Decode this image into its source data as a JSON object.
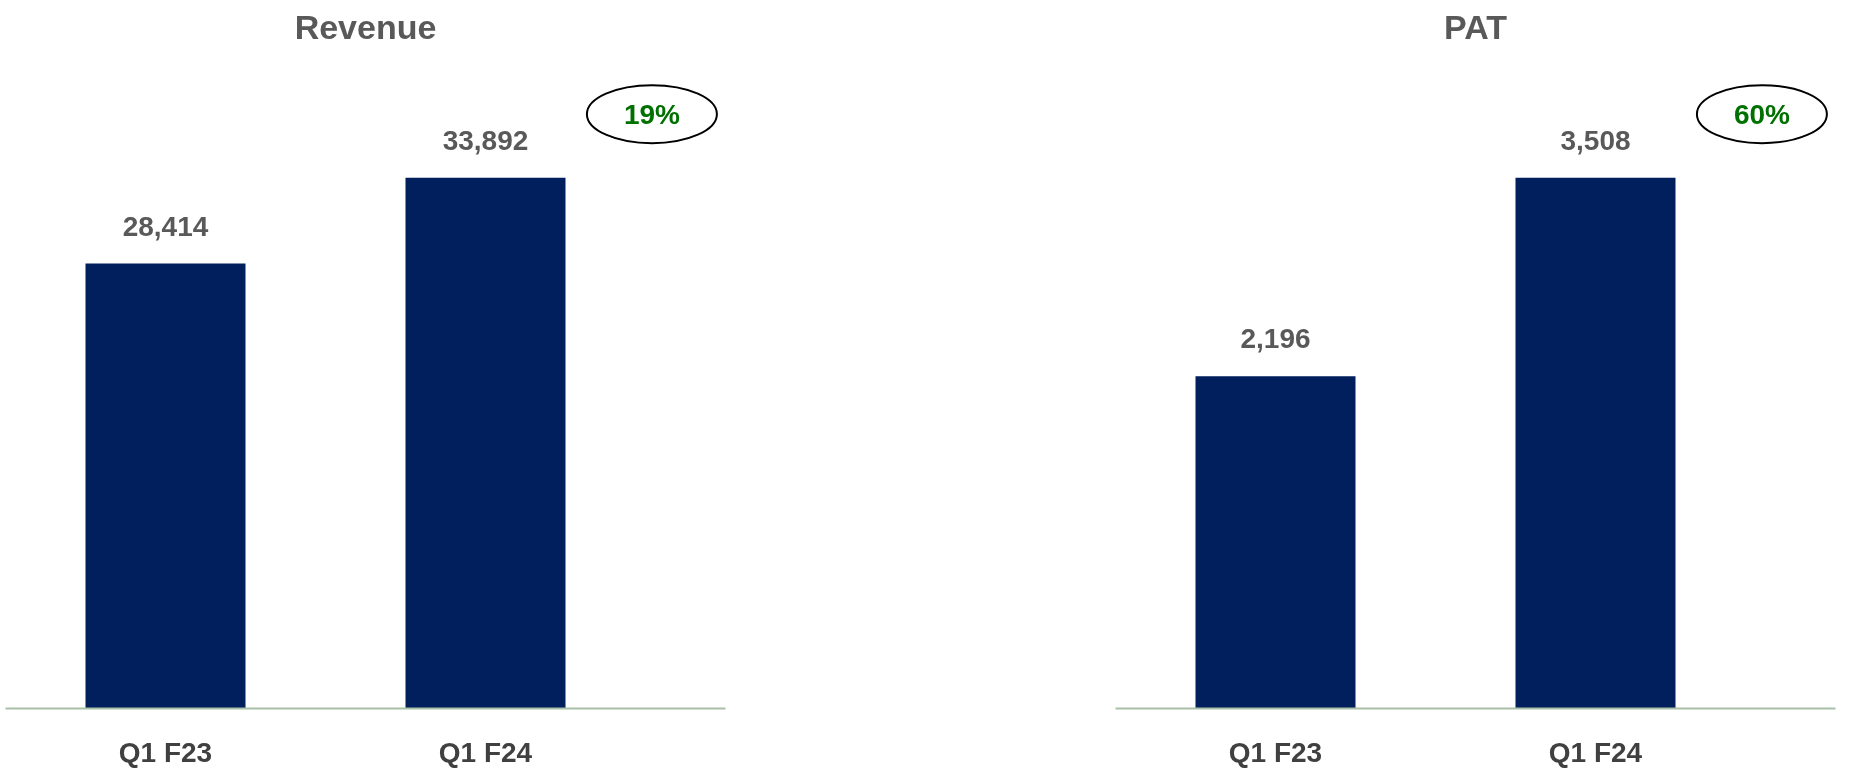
{
  "chart_data": [
    {
      "type": "bar",
      "title": "Revenue",
      "categories": [
        "Q1 F23",
        "Q1 F24"
      ],
      "values": [
        28414,
        33892
      ],
      "value_labels": [
        "28,414",
        "33,892"
      ],
      "color": "#001f5c",
      "tick_labels": "x",
      "annotations": [
        "19%"
      ]
    },
    {
      "type": "bar",
      "title": "PAT",
      "categories": [
        "Q1 F23",
        "Q1 F24"
      ],
      "values": [
        2196,
        3508
      ],
      "value_labels": [
        "2,196",
        "3,508"
      ],
      "color": "#001f5c",
      "tick_labels": "x",
      "annotations": [
        "60%"
      ]
    }
  ]
}
